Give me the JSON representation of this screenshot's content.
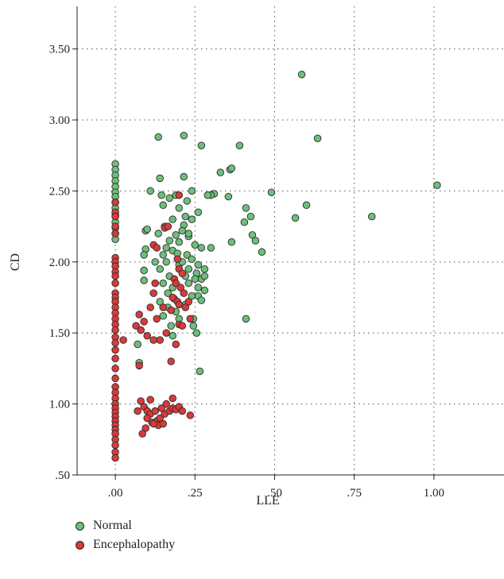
{
  "chart_data": {
    "type": "scatter",
    "xlabel": "LLE",
    "ylabel": "CD",
    "xlim": [
      -0.12,
      1.22
    ],
    "ylim": [
      0.5,
      3.8
    ],
    "xticks": [
      ".00",
      ".25",
      ".50",
      ".75",
      "1.00"
    ],
    "xtick_values": [
      0,
      0.25,
      0.5,
      0.75,
      1.0
    ],
    "yticks": [
      ".50",
      "1.00",
      "1.50",
      "2.00",
      "2.50",
      "3.00",
      "3.50"
    ],
    "ytick_values": [
      0.5,
      1.0,
      1.5,
      2.0,
      2.5,
      3.0,
      3.5
    ],
    "grid": "dotted",
    "legend_position": "bottom-left",
    "series": [
      {
        "name": "Normal",
        "color": "#6dbf7a",
        "points": [
          [
            0.0,
            2.69
          ],
          [
            0.0,
            2.65
          ],
          [
            0.0,
            2.61
          ],
          [
            0.0,
            2.57
          ],
          [
            0.0,
            2.53
          ],
          [
            0.0,
            2.49
          ],
          [
            0.0,
            2.46
          ],
          [
            0.0,
            2.42
          ],
          [
            0.0,
            2.38
          ],
          [
            0.0,
            2.33
          ],
          [
            0.0,
            2.28
          ],
          [
            0.0,
            2.24
          ],
          [
            0.0,
            2.2
          ],
          [
            0.0,
            2.16
          ],
          [
            0.135,
            2.88
          ],
          [
            0.215,
            2.89
          ],
          [
            0.27,
            2.82
          ],
          [
            0.39,
            2.82
          ],
          [
            0.585,
            3.32
          ],
          [
            0.635,
            2.87
          ],
          [
            1.01,
            2.54
          ],
          [
            0.33,
            2.63
          ],
          [
            0.36,
            2.65
          ],
          [
            0.365,
            2.66
          ],
          [
            0.31,
            2.48
          ],
          [
            0.3,
            2.47
          ],
          [
            0.355,
            2.46
          ],
          [
            0.29,
            2.47
          ],
          [
            0.49,
            2.49
          ],
          [
            0.6,
            2.4
          ],
          [
            0.565,
            2.31
          ],
          [
            0.805,
            2.32
          ],
          [
            0.41,
            2.38
          ],
          [
            0.425,
            2.32
          ],
          [
            0.405,
            2.28
          ],
          [
            0.43,
            2.19
          ],
          [
            0.44,
            2.15
          ],
          [
            0.46,
            2.07
          ],
          [
            0.365,
            2.14
          ],
          [
            0.41,
            1.6
          ],
          [
            0.265,
            1.23
          ],
          [
            0.14,
            2.59
          ],
          [
            0.215,
            2.6
          ],
          [
            0.24,
            2.5
          ],
          [
            0.11,
            2.5
          ],
          [
            0.145,
            2.47
          ],
          [
            0.17,
            2.45
          ],
          [
            0.19,
            2.47
          ],
          [
            0.225,
            2.43
          ],
          [
            0.15,
            2.4
          ],
          [
            0.2,
            2.38
          ],
          [
            0.26,
            2.35
          ],
          [
            0.24,
            2.3
          ],
          [
            0.18,
            2.3
          ],
          [
            0.215,
            2.26
          ],
          [
            0.155,
            2.25
          ],
          [
            0.135,
            2.2
          ],
          [
            0.19,
            2.19
          ],
          [
            0.23,
            2.18
          ],
          [
            0.17,
            2.15
          ],
          [
            0.2,
            2.14
          ],
          [
            0.25,
            2.12
          ],
          [
            0.27,
            2.1
          ],
          [
            0.3,
            2.1
          ],
          [
            0.15,
            2.05
          ],
          [
            0.18,
            2.08
          ],
          [
            0.225,
            2.05
          ],
          [
            0.095,
            2.22
          ],
          [
            0.1,
            2.23
          ],
          [
            0.095,
            2.09
          ],
          [
            0.09,
            2.05
          ],
          [
            0.09,
            1.94
          ],
          [
            0.09,
            1.87
          ],
          [
            0.125,
            2.0
          ],
          [
            0.16,
            2.0
          ],
          [
            0.2,
            1.98
          ],
          [
            0.24,
            2.02
          ],
          [
            0.26,
            1.98
          ],
          [
            0.28,
            1.95
          ],
          [
            0.14,
            1.95
          ],
          [
            0.17,
            1.9
          ],
          [
            0.22,
            1.9
          ],
          [
            0.255,
            1.92
          ],
          [
            0.27,
            1.88
          ],
          [
            0.15,
            1.85
          ],
          [
            0.23,
            1.85
          ],
          [
            0.18,
            1.82
          ],
          [
            0.28,
            1.8
          ],
          [
            0.26,
            1.76
          ],
          [
            0.24,
            1.76
          ],
          [
            0.27,
            1.73
          ],
          [
            0.14,
            1.72
          ],
          [
            0.165,
            1.68
          ],
          [
            0.19,
            1.65
          ],
          [
            0.245,
            1.6
          ],
          [
            0.15,
            1.62
          ],
          [
            0.2,
            1.6
          ],
          [
            0.175,
            1.55
          ],
          [
            0.245,
            1.55
          ],
          [
            0.255,
            1.5
          ],
          [
            0.18,
            1.48
          ],
          [
            0.07,
            1.42
          ],
          [
            0.075,
            1.29
          ],
          [
            0.21,
            2.22
          ],
          [
            0.22,
            2.32
          ],
          [
            0.23,
            2.2
          ],
          [
            0.16,
            2.1
          ],
          [
            0.195,
            2.06
          ],
          [
            0.21,
            2.0
          ],
          [
            0.23,
            1.95
          ],
          [
            0.25,
            1.88
          ],
          [
            0.165,
            1.78
          ],
          [
            0.185,
            1.74
          ],
          [
            0.22,
            1.7
          ],
          [
            0.26,
            1.82
          ],
          [
            0.28,
            1.9
          ]
        ]
      },
      {
        "name": "Encephalopathy",
        "color": "#d93a3a",
        "points": [
          [
            0.0,
            2.42
          ],
          [
            0.0,
            2.35
          ],
          [
            0.0,
            2.32
          ],
          [
            0.0,
            2.25
          ],
          [
            0.0,
            2.2
          ],
          [
            0.0,
            2.03
          ],
          [
            0.0,
            2.0
          ],
          [
            0.0,
            1.97
          ],
          [
            0.0,
            1.93
          ],
          [
            0.0,
            1.9
          ],
          [
            0.0,
            1.85
          ],
          [
            0.0,
            1.78
          ],
          [
            0.0,
            1.75
          ],
          [
            0.0,
            1.72
          ],
          [
            0.0,
            1.68
          ],
          [
            0.0,
            1.64
          ],
          [
            0.0,
            1.6
          ],
          [
            0.0,
            1.56
          ],
          [
            0.0,
            1.52
          ],
          [
            0.0,
            1.47
          ],
          [
            0.0,
            1.43
          ],
          [
            0.0,
            1.38
          ],
          [
            0.0,
            1.32
          ],
          [
            0.0,
            1.25
          ],
          [
            0.0,
            1.18
          ],
          [
            0.0,
            1.12
          ],
          [
            0.0,
            1.08
          ],
          [
            0.0,
            1.04
          ],
          [
            0.0,
            1.0
          ],
          [
            0.0,
            0.97
          ],
          [
            0.0,
            0.94
          ],
          [
            0.0,
            0.91
          ],
          [
            0.0,
            0.88
          ],
          [
            0.0,
            0.85
          ],
          [
            0.0,
            0.82
          ],
          [
            0.0,
            0.79
          ],
          [
            0.0,
            0.75
          ],
          [
            0.0,
            0.71
          ],
          [
            0.0,
            0.66
          ],
          [
            0.0,
            0.62
          ],
          [
            0.025,
            1.45
          ],
          [
            0.2,
            2.47
          ],
          [
            0.155,
            2.24
          ],
          [
            0.165,
            2.25
          ],
          [
            0.12,
            2.12
          ],
          [
            0.13,
            2.1
          ],
          [
            0.195,
            2.02
          ],
          [
            0.2,
            1.95
          ],
          [
            0.21,
            1.92
          ],
          [
            0.185,
            1.88
          ],
          [
            0.19,
            1.85
          ],
          [
            0.205,
            1.82
          ],
          [
            0.215,
            1.78
          ],
          [
            0.18,
            1.75
          ],
          [
            0.195,
            1.72
          ],
          [
            0.2,
            1.7
          ],
          [
            0.22,
            1.68
          ],
          [
            0.15,
            1.68
          ],
          [
            0.175,
            1.66
          ],
          [
            0.13,
            1.6
          ],
          [
            0.125,
            1.85
          ],
          [
            0.12,
            1.78
          ],
          [
            0.11,
            1.68
          ],
          [
            0.075,
            1.63
          ],
          [
            0.09,
            1.58
          ],
          [
            0.08,
            1.52
          ],
          [
            0.065,
            1.55
          ],
          [
            0.1,
            1.48
          ],
          [
            0.14,
            1.45
          ],
          [
            0.16,
            1.5
          ],
          [
            0.2,
            1.56
          ],
          [
            0.21,
            1.55
          ],
          [
            0.235,
            1.6
          ],
          [
            0.23,
            1.72
          ],
          [
            0.19,
            1.42
          ],
          [
            0.175,
            1.3
          ],
          [
            0.12,
            1.45
          ],
          [
            0.075,
            1.27
          ],
          [
            0.08,
            1.02
          ],
          [
            0.09,
            0.98
          ],
          [
            0.1,
            0.95
          ],
          [
            0.11,
            0.93
          ],
          [
            0.1,
            0.9
          ],
          [
            0.115,
            0.87
          ],
          [
            0.13,
            0.88
          ],
          [
            0.14,
            0.9
          ],
          [
            0.155,
            0.93
          ],
          [
            0.17,
            0.95
          ],
          [
            0.18,
            0.97
          ],
          [
            0.19,
            0.96
          ],
          [
            0.2,
            0.98
          ],
          [
            0.21,
            0.95
          ],
          [
            0.16,
            1.0
          ],
          [
            0.145,
            0.97
          ],
          [
            0.125,
            0.95
          ],
          [
            0.11,
            1.03
          ],
          [
            0.18,
            1.04
          ],
          [
            0.095,
            0.83
          ],
          [
            0.085,
            0.79
          ],
          [
            0.07,
            0.95
          ],
          [
            0.135,
            0.85
          ],
          [
            0.235,
            0.92
          ],
          [
            0.12,
            0.86
          ],
          [
            0.15,
            0.86
          ]
        ]
      }
    ]
  }
}
